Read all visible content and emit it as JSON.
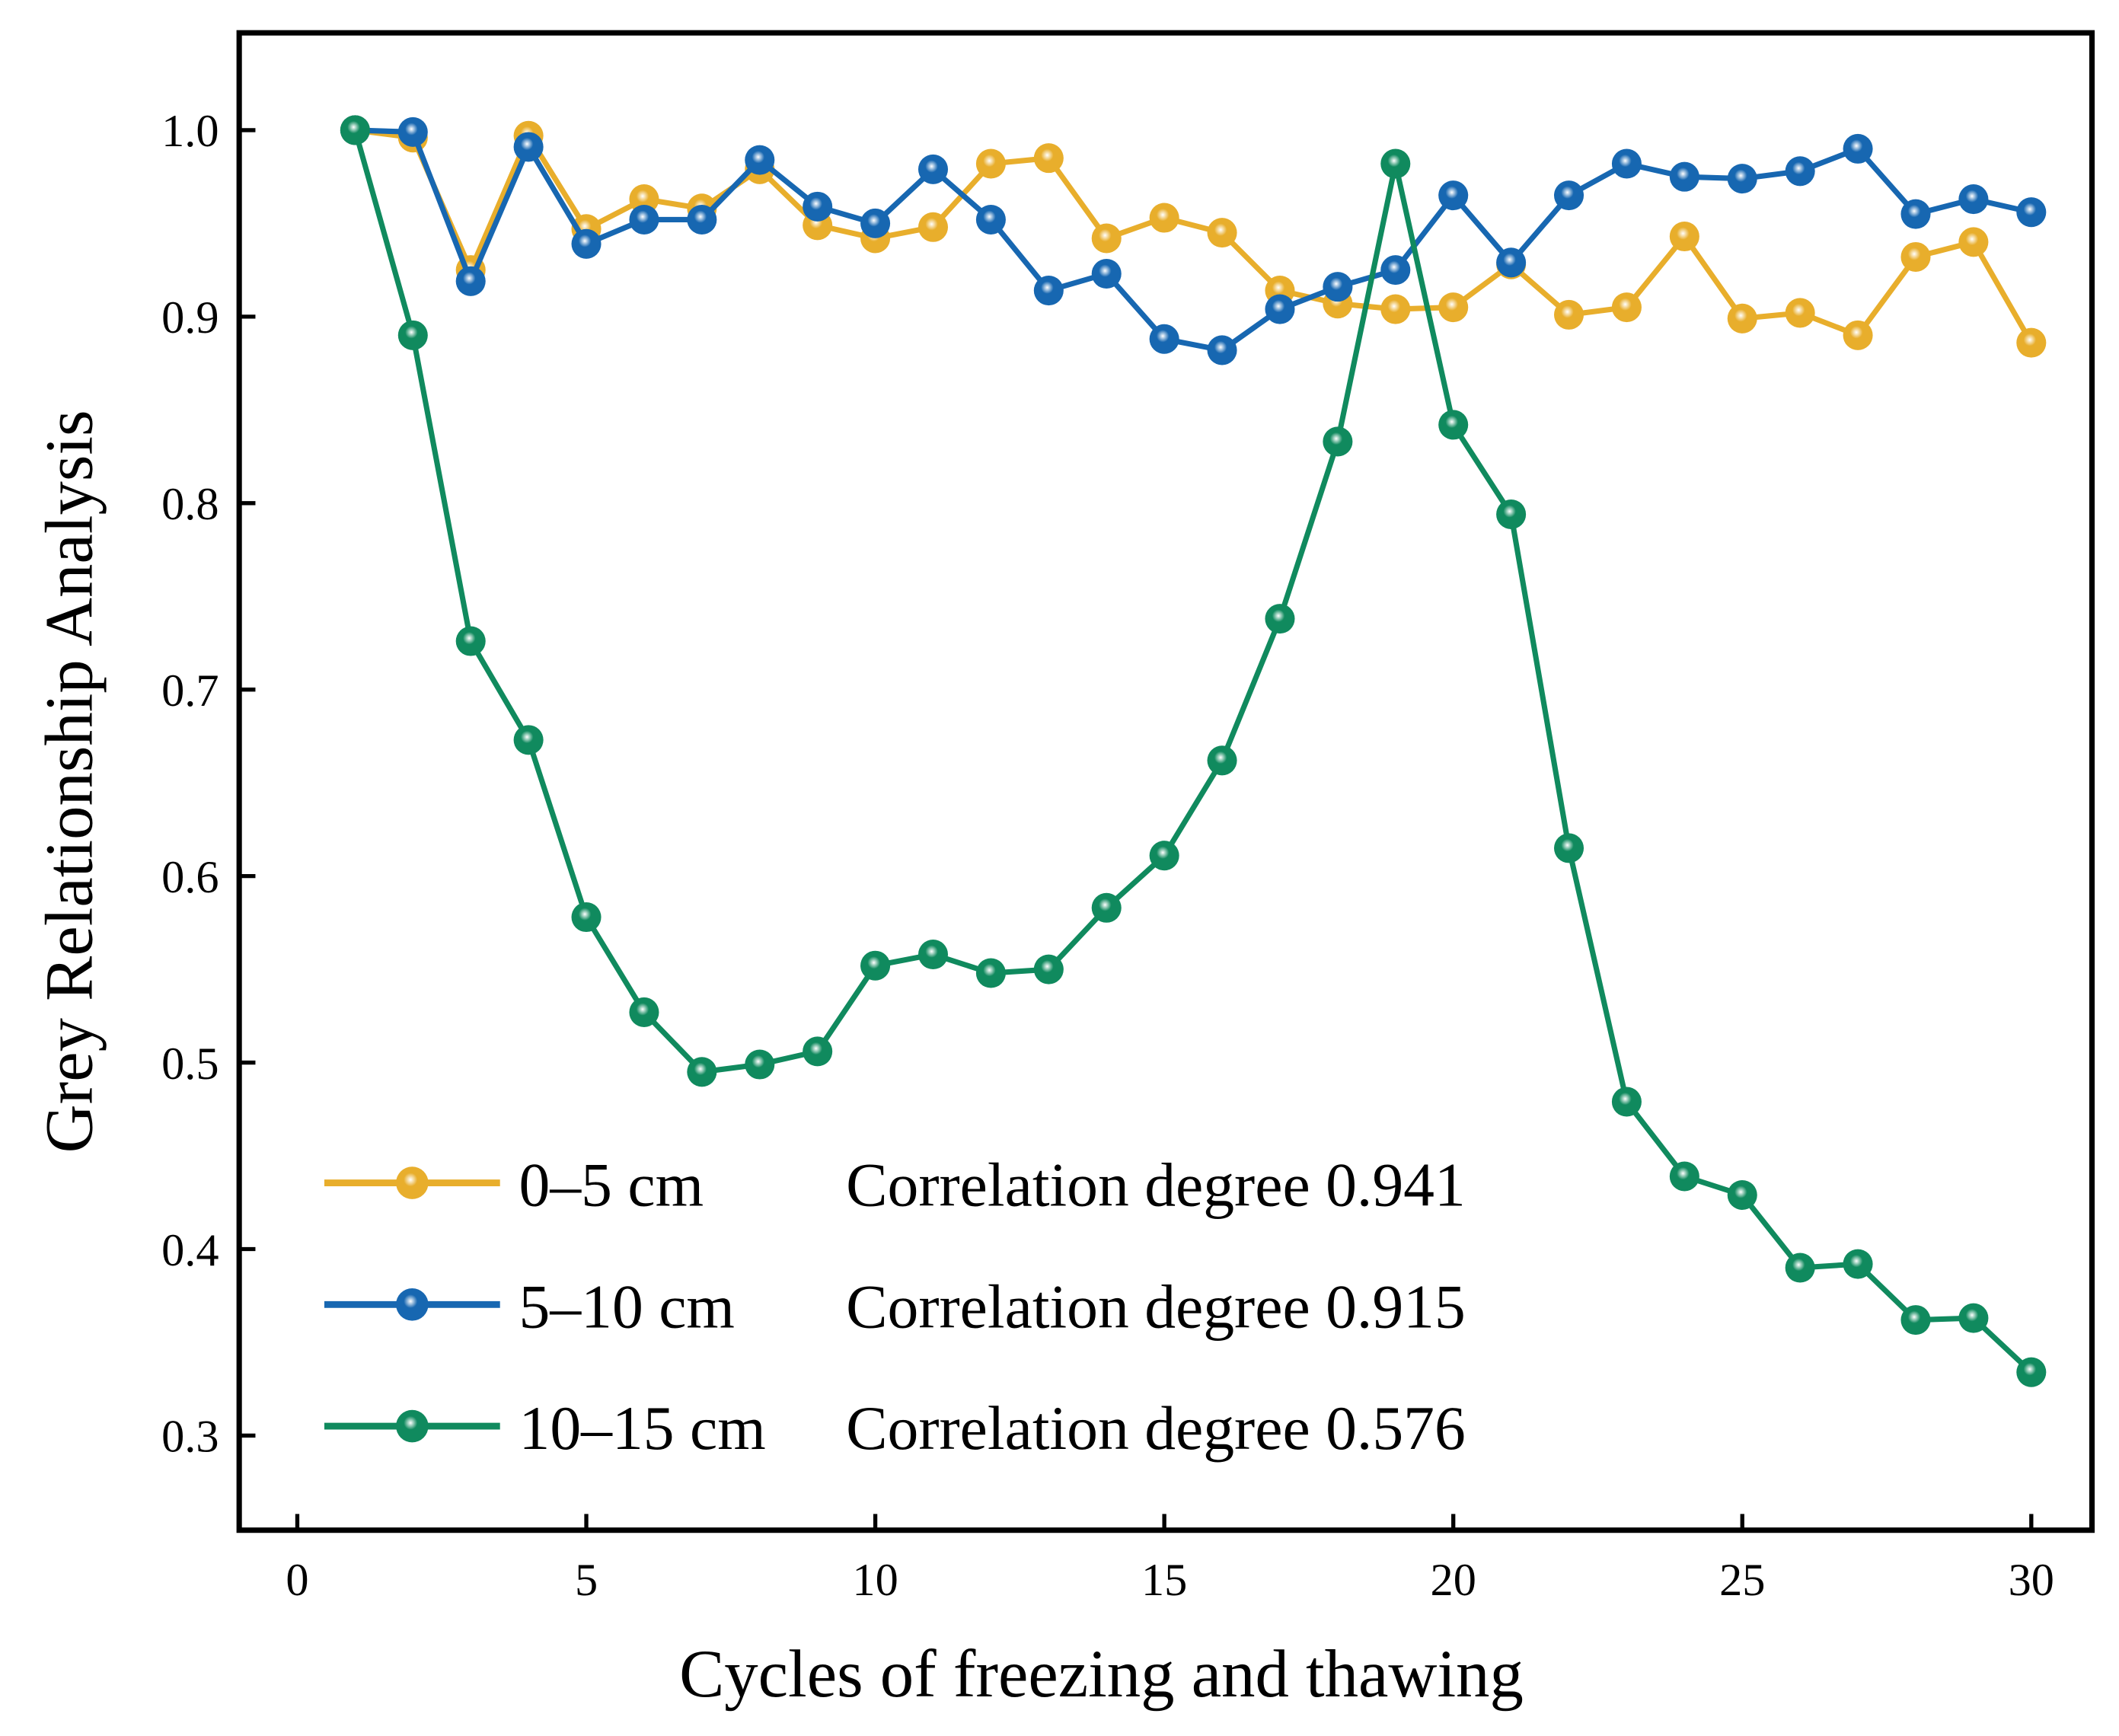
{
  "chart_data": {
    "type": "line",
    "title": "",
    "xlabel": "Cycles of freezing and thawing",
    "ylabel": "Grey Relationship Analysis",
    "xlim": [
      -1,
      31
    ],
    "ylim": [
      0.25,
      1.05
    ],
    "xticks": [
      0,
      5,
      10,
      15,
      20,
      25,
      30
    ],
    "xtick_labels": [
      "0",
      "5",
      "10",
      "15",
      "20",
      "25",
      "30"
    ],
    "yticks": [
      0.3,
      0.4,
      0.5,
      0.6,
      0.7,
      0.8,
      0.9,
      1.0
    ],
    "ytick_labels": [
      "0.3",
      "0.4",
      "0.5",
      "0.6",
      "0.7",
      "0.8",
      "0.9",
      "1.0"
    ],
    "grid": false,
    "legend_position": "bottom-left",
    "x": [
      1,
      2,
      3,
      4,
      5,
      6,
      7,
      8,
      9,
      10,
      11,
      12,
      13,
      14,
      15,
      16,
      17,
      18,
      19,
      20,
      21,
      22,
      23,
      24,
      25,
      26,
      27,
      28,
      29,
      30
    ],
    "series": [
      {
        "name": "0–5 cm",
        "annotation": "Correlation degree 0.941",
        "color": "#E8AE2C",
        "values": [
          1.0,
          0.996,
          0.925,
          0.997,
          0.947,
          0.963,
          0.958,
          0.979,
          0.949,
          0.942,
          0.948,
          0.982,
          0.985,
          0.942,
          0.953,
          0.945,
          0.914,
          0.907,
          0.904,
          0.905,
          0.928,
          0.901,
          0.905,
          0.943,
          0.899,
          0.902,
          0.89,
          0.932,
          0.94,
          0.886
        ]
      },
      {
        "name": "5–10 cm",
        "annotation": "Correlation degree 0.915",
        "color": "#1767B1",
        "values": [
          1.0,
          0.999,
          0.919,
          0.991,
          0.939,
          0.952,
          0.952,
          0.984,
          0.959,
          0.95,
          0.979,
          0.952,
          0.914,
          0.923,
          0.888,
          0.882,
          0.904,
          0.916,
          0.925,
          0.965,
          0.929,
          0.965,
          0.982,
          0.975,
          0.974,
          0.978,
          0.99,
          0.955,
          0.963,
          0.956
        ]
      },
      {
        "name": "10–15 cm",
        "annotation": "Correlation degree 0.576",
        "color": "#108A5E",
        "values": [
          1.0,
          0.89,
          0.726,
          0.673,
          0.578,
          0.527,
          0.495,
          0.499,
          0.506,
          0.552,
          0.558,
          0.548,
          0.55,
          0.583,
          0.611,
          0.662,
          0.738,
          0.833,
          0.982,
          0.842,
          0.794,
          0.615,
          0.479,
          0.439,
          0.429,
          0.39,
          0.392,
          0.362,
          0.363,
          0.334
        ]
      }
    ]
  }
}
